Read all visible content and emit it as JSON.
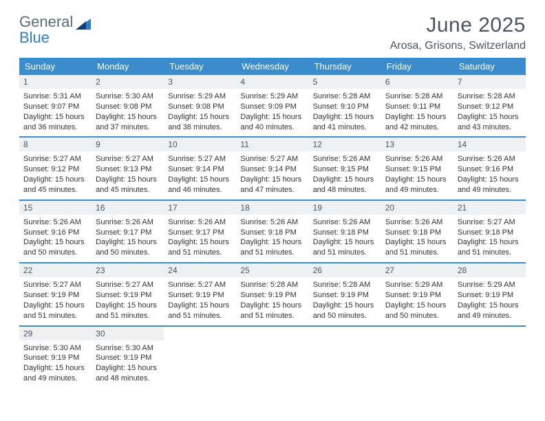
{
  "brand": {
    "word1": "General",
    "word2": "Blue"
  },
  "title": "June 2025",
  "location": "Arosa, Grisons, Switzerland",
  "colors": {
    "header_bg": "#3b8ccc",
    "header_text": "#ffffff",
    "daynum_bg": "#eef1f4",
    "rule": "#3b8ccc",
    "text": "#333333",
    "title_color": "#4a5560",
    "brand_gray": "#5a6b7a",
    "brand_blue": "#2f7dc4",
    "page_bg": "#ffffff"
  },
  "fonts": {
    "dow_size_pt": 10,
    "daynum_size_pt": 9,
    "body_size_pt": 8,
    "title_size_pt": 22
  },
  "dow": [
    "Sunday",
    "Monday",
    "Tuesday",
    "Wednesday",
    "Thursday",
    "Friday",
    "Saturday"
  ],
  "days": [
    {
      "n": "1",
      "sunrise": "Sunrise: 5:31 AM",
      "sunset": "Sunset: 9:07 PM",
      "day1": "Daylight: 15 hours",
      "day2": "and 36 minutes."
    },
    {
      "n": "2",
      "sunrise": "Sunrise: 5:30 AM",
      "sunset": "Sunset: 9:08 PM",
      "day1": "Daylight: 15 hours",
      "day2": "and 37 minutes."
    },
    {
      "n": "3",
      "sunrise": "Sunrise: 5:29 AM",
      "sunset": "Sunset: 9:08 PM",
      "day1": "Daylight: 15 hours",
      "day2": "and 38 minutes."
    },
    {
      "n": "4",
      "sunrise": "Sunrise: 5:29 AM",
      "sunset": "Sunset: 9:09 PM",
      "day1": "Daylight: 15 hours",
      "day2": "and 40 minutes."
    },
    {
      "n": "5",
      "sunrise": "Sunrise: 5:28 AM",
      "sunset": "Sunset: 9:10 PM",
      "day1": "Daylight: 15 hours",
      "day2": "and 41 minutes."
    },
    {
      "n": "6",
      "sunrise": "Sunrise: 5:28 AM",
      "sunset": "Sunset: 9:11 PM",
      "day1": "Daylight: 15 hours",
      "day2": "and 42 minutes."
    },
    {
      "n": "7",
      "sunrise": "Sunrise: 5:28 AM",
      "sunset": "Sunset: 9:12 PM",
      "day1": "Daylight: 15 hours",
      "day2": "and 43 minutes."
    },
    {
      "n": "8",
      "sunrise": "Sunrise: 5:27 AM",
      "sunset": "Sunset: 9:12 PM",
      "day1": "Daylight: 15 hours",
      "day2": "and 45 minutes."
    },
    {
      "n": "9",
      "sunrise": "Sunrise: 5:27 AM",
      "sunset": "Sunset: 9:13 PM",
      "day1": "Daylight: 15 hours",
      "day2": "and 45 minutes."
    },
    {
      "n": "10",
      "sunrise": "Sunrise: 5:27 AM",
      "sunset": "Sunset: 9:14 PM",
      "day1": "Daylight: 15 hours",
      "day2": "and 46 minutes."
    },
    {
      "n": "11",
      "sunrise": "Sunrise: 5:27 AM",
      "sunset": "Sunset: 9:14 PM",
      "day1": "Daylight: 15 hours",
      "day2": "and 47 minutes."
    },
    {
      "n": "12",
      "sunrise": "Sunrise: 5:26 AM",
      "sunset": "Sunset: 9:15 PM",
      "day1": "Daylight: 15 hours",
      "day2": "and 48 minutes."
    },
    {
      "n": "13",
      "sunrise": "Sunrise: 5:26 AM",
      "sunset": "Sunset: 9:15 PM",
      "day1": "Daylight: 15 hours",
      "day2": "and 49 minutes."
    },
    {
      "n": "14",
      "sunrise": "Sunrise: 5:26 AM",
      "sunset": "Sunset: 9:16 PM",
      "day1": "Daylight: 15 hours",
      "day2": "and 49 minutes."
    },
    {
      "n": "15",
      "sunrise": "Sunrise: 5:26 AM",
      "sunset": "Sunset: 9:16 PM",
      "day1": "Daylight: 15 hours",
      "day2": "and 50 minutes."
    },
    {
      "n": "16",
      "sunrise": "Sunrise: 5:26 AM",
      "sunset": "Sunset: 9:17 PM",
      "day1": "Daylight: 15 hours",
      "day2": "and 50 minutes."
    },
    {
      "n": "17",
      "sunrise": "Sunrise: 5:26 AM",
      "sunset": "Sunset: 9:17 PM",
      "day1": "Daylight: 15 hours",
      "day2": "and 51 minutes."
    },
    {
      "n": "18",
      "sunrise": "Sunrise: 5:26 AM",
      "sunset": "Sunset: 9:18 PM",
      "day1": "Daylight: 15 hours",
      "day2": "and 51 minutes."
    },
    {
      "n": "19",
      "sunrise": "Sunrise: 5:26 AM",
      "sunset": "Sunset: 9:18 PM",
      "day1": "Daylight: 15 hours",
      "day2": "and 51 minutes."
    },
    {
      "n": "20",
      "sunrise": "Sunrise: 5:26 AM",
      "sunset": "Sunset: 9:18 PM",
      "day1": "Daylight: 15 hours",
      "day2": "and 51 minutes."
    },
    {
      "n": "21",
      "sunrise": "Sunrise: 5:27 AM",
      "sunset": "Sunset: 9:18 PM",
      "day1": "Daylight: 15 hours",
      "day2": "and 51 minutes."
    },
    {
      "n": "22",
      "sunrise": "Sunrise: 5:27 AM",
      "sunset": "Sunset: 9:19 PM",
      "day1": "Daylight: 15 hours",
      "day2": "and 51 minutes."
    },
    {
      "n": "23",
      "sunrise": "Sunrise: 5:27 AM",
      "sunset": "Sunset: 9:19 PM",
      "day1": "Daylight: 15 hours",
      "day2": "and 51 minutes."
    },
    {
      "n": "24",
      "sunrise": "Sunrise: 5:27 AM",
      "sunset": "Sunset: 9:19 PM",
      "day1": "Daylight: 15 hours",
      "day2": "and 51 minutes."
    },
    {
      "n": "25",
      "sunrise": "Sunrise: 5:28 AM",
      "sunset": "Sunset: 9:19 PM",
      "day1": "Daylight: 15 hours",
      "day2": "and 51 minutes."
    },
    {
      "n": "26",
      "sunrise": "Sunrise: 5:28 AM",
      "sunset": "Sunset: 9:19 PM",
      "day1": "Daylight: 15 hours",
      "day2": "and 50 minutes."
    },
    {
      "n": "27",
      "sunrise": "Sunrise: 5:29 AM",
      "sunset": "Sunset: 9:19 PM",
      "day1": "Daylight: 15 hours",
      "day2": "and 50 minutes."
    },
    {
      "n": "28",
      "sunrise": "Sunrise: 5:29 AM",
      "sunset": "Sunset: 9:19 PM",
      "day1": "Daylight: 15 hours",
      "day2": "and 49 minutes."
    },
    {
      "n": "29",
      "sunrise": "Sunrise: 5:30 AM",
      "sunset": "Sunset: 9:19 PM",
      "day1": "Daylight: 15 hours",
      "day2": "and 49 minutes."
    },
    {
      "n": "30",
      "sunrise": "Sunrise: 5:30 AM",
      "sunset": "Sunset: 9:19 PM",
      "day1": "Daylight: 15 hours",
      "day2": "and 48 minutes."
    }
  ]
}
